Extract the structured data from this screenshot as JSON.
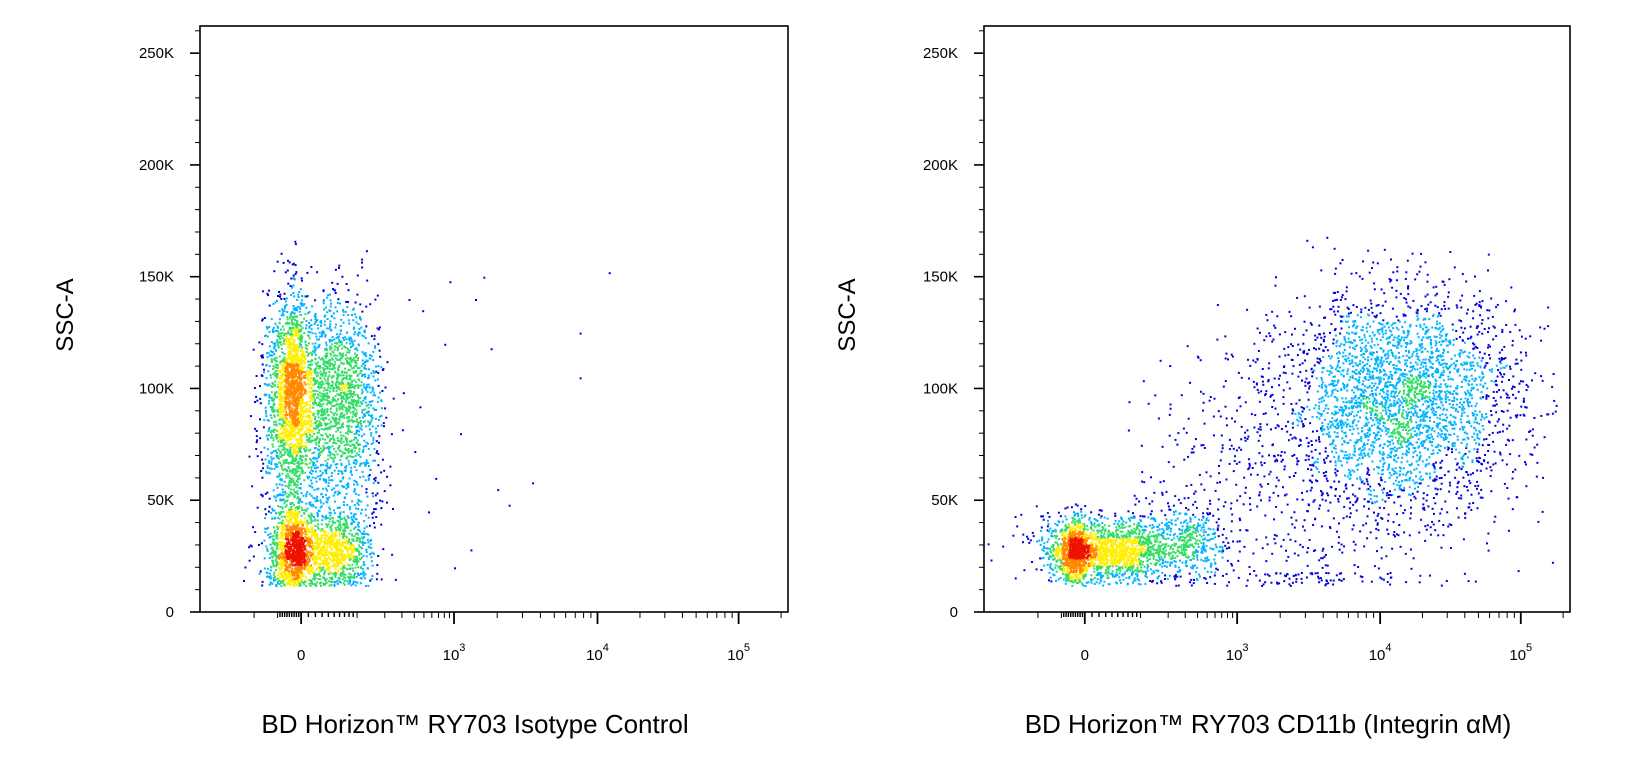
{
  "chart_data": [
    {
      "type": "scatter",
      "subtype": "flow-cytometry-pseudocolor-density",
      "title": "",
      "xlabel": "BD Horizon™ RY703 Isotype Control",
      "ylabel": "SSC-A",
      "x_scale": "biexponential",
      "xlim": [
        -300,
        200000
      ],
      "ylim": [
        0,
        262144
      ],
      "x_ticks": [
        {
          "value": 0,
          "base": "0",
          "exp": ""
        },
        {
          "value": 1000,
          "base": "10",
          "exp": "3"
        },
        {
          "value": 10000,
          "base": "10",
          "exp": "4"
        },
        {
          "value": 100000,
          "base": "10",
          "exp": "5"
        }
      ],
      "y_ticks": [
        {
          "value": 0,
          "label": "0"
        },
        {
          "value": 50000,
          "label": "50K"
        },
        {
          "value": 100000,
          "label": "100K"
        },
        {
          "value": 150000,
          "label": "150K"
        },
        {
          "value": 200000,
          "label": "200K"
        },
        {
          "value": 250000,
          "label": "250K"
        }
      ],
      "colormap": [
        "#0000dd",
        "#00b4ff",
        "#33dd66",
        "#ffee00",
        "#ff8800",
        "#ee1100"
      ],
      "populations": [
        {
          "x_center": 0,
          "x_spread": 60,
          "y_center": 28000,
          "y_spread": 9000,
          "count": 1800,
          "peak": "red"
        },
        {
          "x_center": 0,
          "x_spread": 70,
          "y_center": 100000,
          "y_spread": 20000,
          "count": 2600,
          "peak": "yellow-green"
        },
        {
          "x_center": 0,
          "x_spread": 80,
          "y_center": 70000,
          "y_spread": 35000,
          "count": 1300,
          "peak": "blue"
        }
      ],
      "outliers": [
        {
          "x": 350,
          "y": 140000
        },
        {
          "x": 480,
          "y": 135000
        },
        {
          "x": 900,
          "y": 148000
        },
        {
          "x": 1600,
          "y": 150000
        },
        {
          "x": 1400,
          "y": 140000
        },
        {
          "x": 12000,
          "y": 152000
        },
        {
          "x": 800,
          "y": 120000
        },
        {
          "x": 1800,
          "y": 118000
        },
        {
          "x": 7500,
          "y": 125000
        },
        {
          "x": 7500,
          "y": 105000
        },
        {
          "x": 1100,
          "y": 80000
        },
        {
          "x": 650,
          "y": 60000
        },
        {
          "x": 2000,
          "y": 55000
        },
        {
          "x": 3500,
          "y": 58000
        },
        {
          "x": 2400,
          "y": 48000
        },
        {
          "x": 1000,
          "y": 20000
        },
        {
          "x": 1300,
          "y": 28000
        },
        {
          "x": 550,
          "y": 45000
        },
        {
          "x": 450,
          "y": 92000
        },
        {
          "x": 400,
          "y": 72000
        }
      ]
    },
    {
      "type": "scatter",
      "subtype": "flow-cytometry-pseudocolor-density",
      "title": "",
      "xlabel": "BD Horizon™ RY703 CD11b (Integrin αM)",
      "ylabel": "SSC-A",
      "x_scale": "biexponential",
      "xlim": [
        -300,
        200000
      ],
      "ylim": [
        0,
        262144
      ],
      "x_ticks": [
        {
          "value": 0,
          "base": "0",
          "exp": ""
        },
        {
          "value": 1000,
          "base": "10",
          "exp": "3"
        },
        {
          "value": 10000,
          "base": "10",
          "exp": "4"
        },
        {
          "value": 100000,
          "base": "10",
          "exp": "5"
        }
      ],
      "y_ticks": [
        {
          "value": 0,
          "label": "0"
        },
        {
          "value": 50000,
          "label": "50K"
        },
        {
          "value": 100000,
          "label": "100K"
        },
        {
          "value": 150000,
          "label": "150K"
        },
        {
          "value": 200000,
          "label": "200K"
        },
        {
          "value": 250000,
          "label": "250K"
        }
      ],
      "colormap": [
        "#0000dd",
        "#00b4ff",
        "#33dd66",
        "#ffee00",
        "#ff8800",
        "#ee1100"
      ],
      "populations": [
        {
          "x_center": 0,
          "x_spread": 70,
          "y_center": 27000,
          "y_spread": 6500,
          "count": 1900,
          "peak": "red"
        },
        {
          "x_center": 200,
          "x_spread": 220,
          "y_center": 32000,
          "y_spread": 7500,
          "count": 700,
          "peak": "blue"
        },
        {
          "x_center": 14000,
          "x_spread_log10": 0.42,
          "y_center": 95000,
          "y_spread": 24000,
          "count": 3000,
          "peak": "yellow-green"
        },
        {
          "x_center": 2000,
          "x_spread_log10": 0.6,
          "y_center": 55000,
          "y_spread": 35000,
          "count": 650,
          "peak": "blue"
        }
      ],
      "outliers": []
    }
  ]
}
